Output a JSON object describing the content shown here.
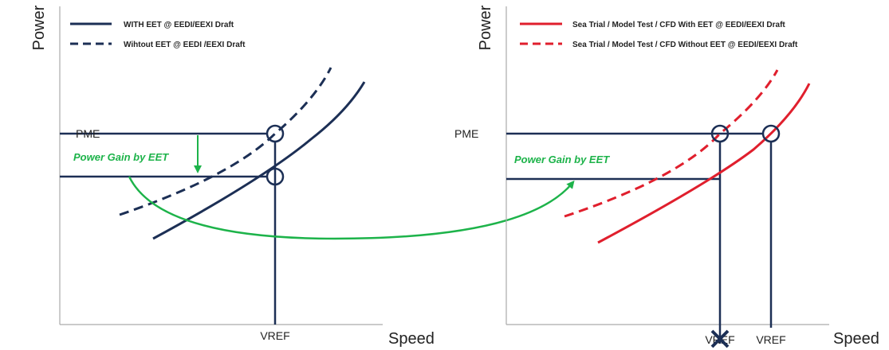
{
  "left": {
    "y_axis_label": "Power",
    "x_axis_label": "Speed",
    "legend": [
      "WITH EET @ EEDI/EEXI Draft",
      "Wihtout EET @ EEDI /EEXI Draft"
    ],
    "pme_label": "PME",
    "vref_label": "VREF",
    "annotation": "Power Gain by EET"
  },
  "right": {
    "y_axis_label": "Power",
    "x_axis_label": "Speed",
    "legend": [
      "Sea Trial / Model Test / CFD With EET @ EEDI/EEXI Draft",
      "Sea Trial / Model Test / CFD Without EET @ EEDI/EEXI Draft"
    ],
    "pme_label": "PME",
    "vref_labels": [
      "VREF",
      "VREF"
    ],
    "annotation": "Power Gain by EET"
  }
}
